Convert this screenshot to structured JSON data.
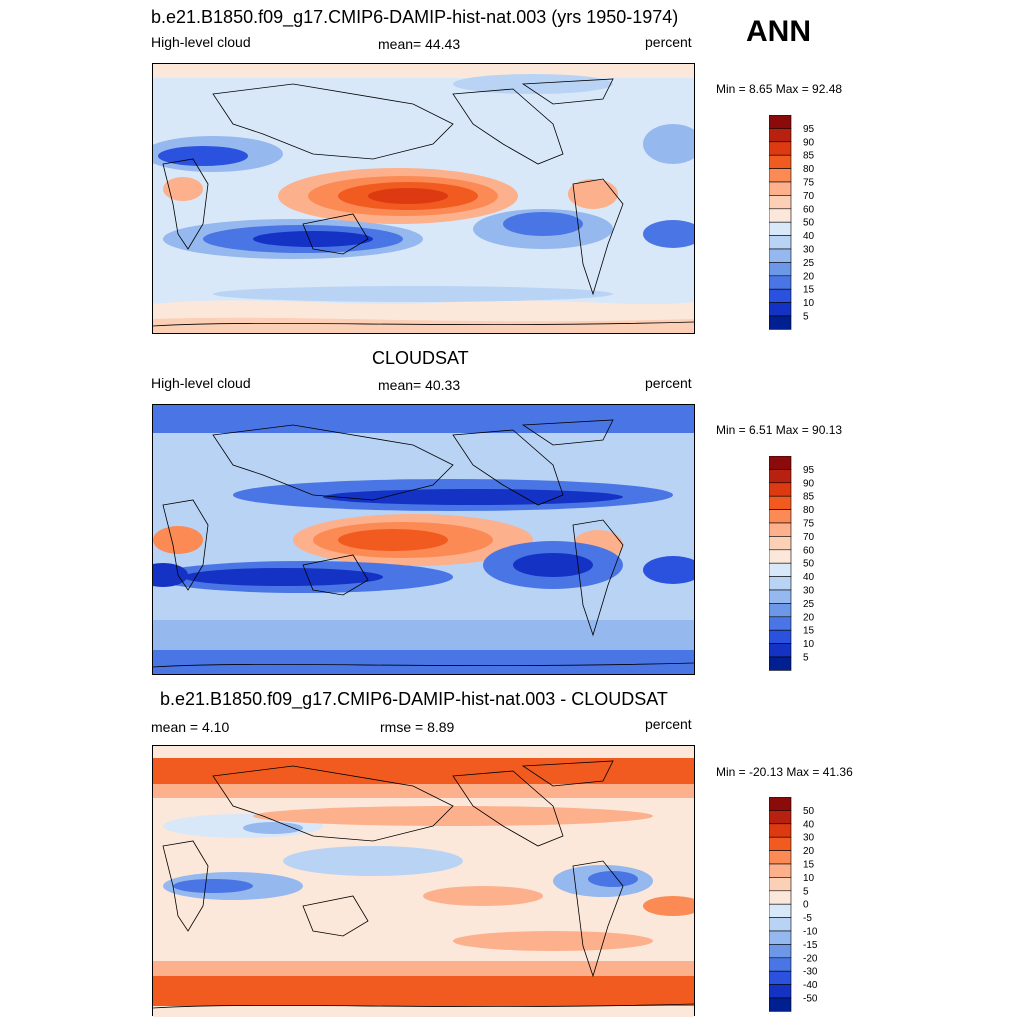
{
  "annotation": "ANN",
  "panels": [
    {
      "title": "b.e21.B1850.f09_g17.CMIP6-DAMIP-hist-nat.003 (yrs 1950-1974)",
      "left_label": "High-level cloud",
      "center_label": "mean=  44.43",
      "right_label": "percent",
      "minmax": "Min =   8.65 Max =  92.48",
      "colorbar_labels": [
        "95",
        "90",
        "85",
        "80",
        "75",
        "70",
        "60",
        "50",
        "40",
        "30",
        "25",
        "20",
        "15",
        "10",
        "5"
      ],
      "colorbar_colors": [
        "#8b0a0a",
        "#b8210f",
        "#dd3a12",
        "#f25b20",
        "#fb8a55",
        "#fdb08c",
        "#fcd0b6",
        "#fce8da",
        "#d8e8f8",
        "#b9d3f4",
        "#95b8ee",
        "#6d98e8",
        "#4a75e4",
        "#2a52de",
        "#1432c4",
        "#001f90"
      ]
    },
    {
      "title": "CLOUDSAT",
      "left_label": "High-level cloud",
      "center_label": "mean=  40.33",
      "right_label": "percent",
      "minmax": "Min =   6.51 Max =  90.13",
      "colorbar_labels": [
        "95",
        "90",
        "85",
        "80",
        "75",
        "70",
        "60",
        "50",
        "40",
        "30",
        "25",
        "20",
        "15",
        "10",
        "5"
      ],
      "colorbar_colors": [
        "#8b0a0a",
        "#b8210f",
        "#dd3a12",
        "#f25b20",
        "#fb8a55",
        "#fdb08c",
        "#fcd0b6",
        "#fce8da",
        "#d8e8f8",
        "#b9d3f4",
        "#95b8ee",
        "#6d98e8",
        "#4a75e4",
        "#2a52de",
        "#1432c4",
        "#001f90"
      ]
    },
    {
      "title": "b.e21.B1850.f09_g17.CMIP6-DAMIP-hist-nat.003 - CLOUDSAT",
      "left_label": "mean =   4.10",
      "center_label": "rmse =   8.89",
      "right_label": "percent",
      "minmax": "Min = -20.13 Max =  41.36",
      "colorbar_labels": [
        "50",
        "40",
        "30",
        "20",
        "15",
        "10",
        "5",
        "0",
        "-5",
        "-10",
        "-15",
        "-20",
        "-30",
        "-40",
        "-50"
      ],
      "colorbar_colors": [
        "#8b0a0a",
        "#b8210f",
        "#dd3a12",
        "#f25b20",
        "#fb8a55",
        "#fdb08c",
        "#fcd0b6",
        "#fce8da",
        "#d8e8f8",
        "#b9d3f4",
        "#95b8ee",
        "#6d98e8",
        "#4a75e4",
        "#2a52de",
        "#1432c4",
        "#001f90"
      ]
    }
  ],
  "chart_data": [
    {
      "type": "heatmap",
      "title": "b.e21.B1850.f09_g17.CMIP6-DAMIP-hist-nat.003 (yrs 1950-1974)",
      "variable": "High-level cloud",
      "units": "percent",
      "mean": 44.43,
      "min": 8.65,
      "max": 92.48,
      "contour_levels": [
        5,
        10,
        15,
        20,
        25,
        30,
        40,
        50,
        60,
        70,
        75,
        80,
        85,
        90,
        95
      ]
    },
    {
      "type": "heatmap",
      "title": "CLOUDSAT",
      "variable": "High-level cloud",
      "units": "percent",
      "mean": 40.33,
      "min": 6.51,
      "max": 90.13,
      "contour_levels": [
        5,
        10,
        15,
        20,
        25,
        30,
        40,
        50,
        60,
        70,
        75,
        80,
        85,
        90,
        95
      ]
    },
    {
      "type": "heatmap",
      "title": "b.e21.B1850.f09_g17.CMIP6-DAMIP-hist-nat.003 - CLOUDSAT",
      "units": "percent",
      "mean": 4.1,
      "rmse": 8.89,
      "min": -20.13,
      "max": 41.36,
      "contour_levels": [
        -50,
        -40,
        -30,
        -20,
        -15,
        -10,
        -5,
        0,
        5,
        10,
        15,
        20,
        30,
        40,
        50
      ]
    }
  ]
}
